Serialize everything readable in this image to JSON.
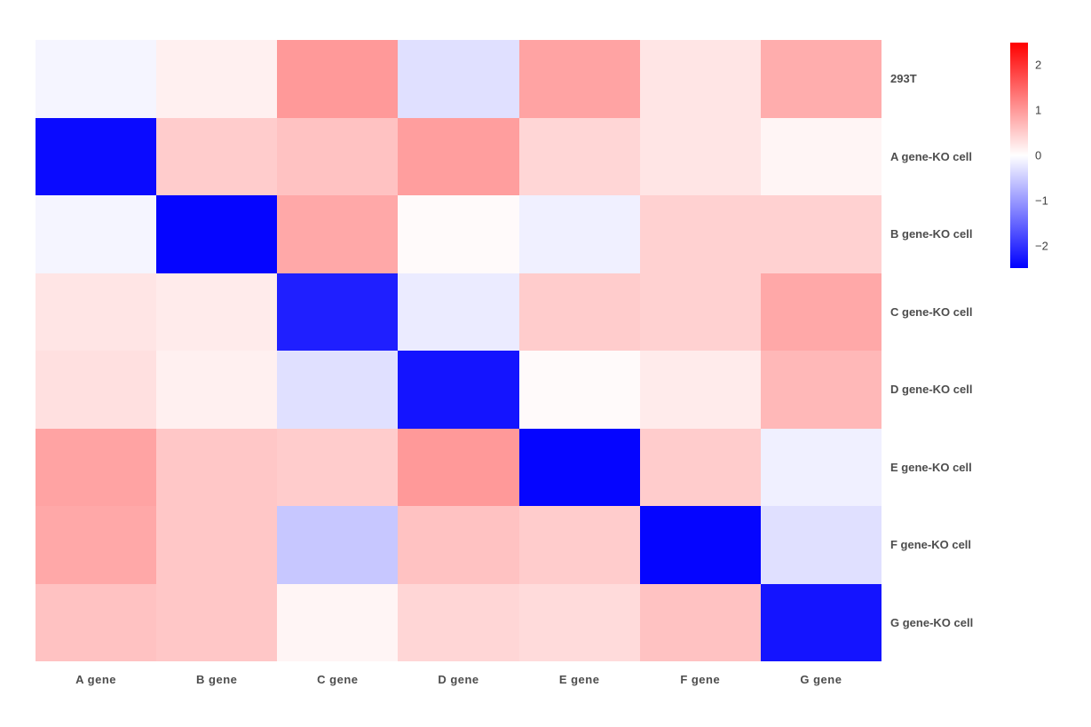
{
  "chart_data": {
    "type": "heatmap",
    "title": "",
    "xlabel": "",
    "ylabel": "",
    "rows": [
      "293T",
      "A gene-KO cell",
      "B gene-KO cell",
      "C gene-KO cell",
      "D gene-KO cell",
      "E gene-KO cell",
      "F gene-KO cell",
      "G gene-KO cell"
    ],
    "columns": [
      "A gene",
      "B gene",
      "C gene",
      "D gene",
      "E gene",
      "F gene",
      "G gene"
    ],
    "values": [
      [
        -0.1,
        0.15,
        1.0,
        -0.3,
        0.9,
        0.25,
        0.8
      ],
      [
        -2.4,
        0.5,
        0.6,
        0.95,
        0.4,
        0.25,
        0.1
      ],
      [
        -0.1,
        -2.45,
        0.85,
        0.05,
        -0.15,
        0.45,
        0.45
      ],
      [
        0.25,
        0.2,
        -2.2,
        -0.2,
        0.5,
        0.45,
        0.85
      ],
      [
        0.3,
        0.15,
        -0.3,
        -2.3,
        0.05,
        0.2,
        0.7
      ],
      [
        0.9,
        0.55,
        0.5,
        1.0,
        -2.45,
        0.5,
        -0.15
      ],
      [
        0.85,
        0.55,
        -0.55,
        0.6,
        0.5,
        -2.45,
        -0.3
      ],
      [
        0.6,
        0.55,
        0.1,
        0.4,
        0.35,
        0.6,
        -2.3
      ]
    ],
    "colormap": "bwr",
    "vmin": -2.5,
    "vmax": 2.5,
    "grid": false,
    "legend_position": "right-colorbar",
    "colorbar_ticks": [
      2,
      1,
      0,
      -1,
      -2
    ],
    "colorbar_tick_labels": [
      "2",
      "1",
      "0",
      "−1",
      "−2"
    ]
  },
  "colors": {
    "positive_end": "#ff0000",
    "zero": "#ffffff",
    "negative_end": "#0000ff",
    "axis_label_text": "#4d4d4d",
    "colorbar_tick_text": "#404040",
    "background": "#ffffff"
  }
}
